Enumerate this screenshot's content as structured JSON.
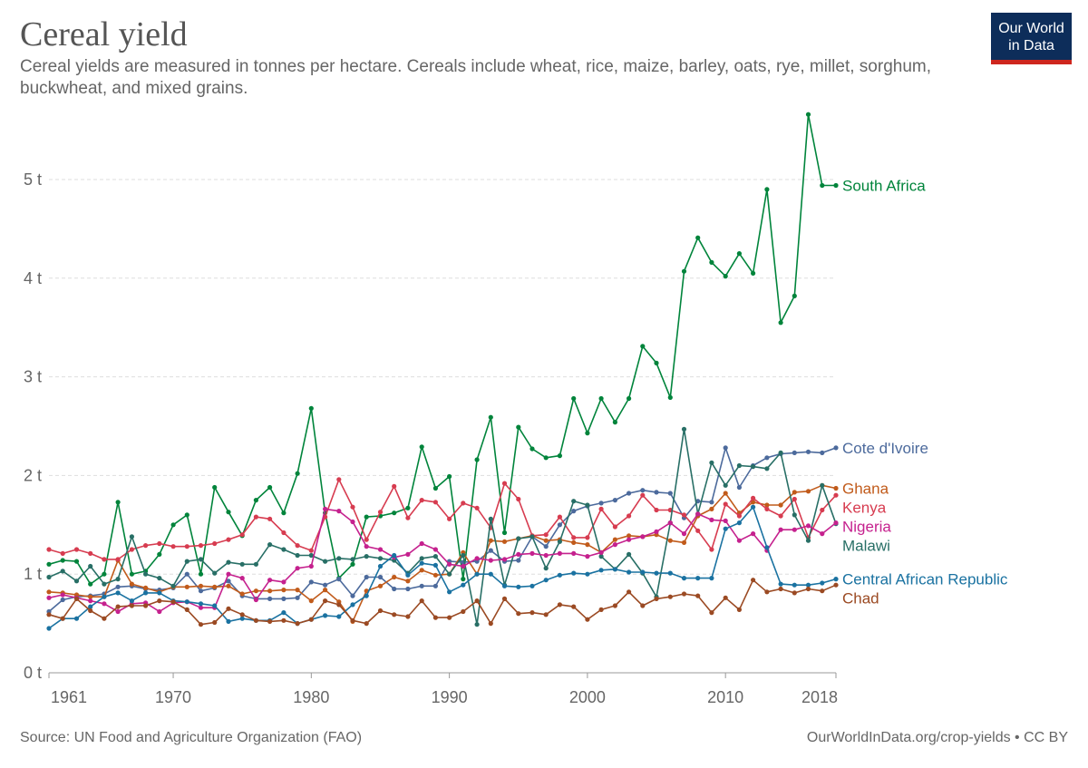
{
  "header": {
    "title": "Cereal yield",
    "subtitle": "Cereal yields are measured in tonnes per hectare. Cereals include wheat, rice, maize, barley, oats, rye, millet, sorghum, buckwheat, and mixed grains."
  },
  "logo": {
    "line1": "Our World",
    "line2": "in Data"
  },
  "footer": {
    "source": "Source: UN Food and Agriculture Organization (FAO)",
    "credit": "OurWorldInData.org/crop-yields • CC BY"
  },
  "chart_data": {
    "type": "line",
    "x": [
      1961,
      1962,
      1963,
      1964,
      1965,
      1966,
      1967,
      1968,
      1969,
      1970,
      1971,
      1972,
      1973,
      1974,
      1975,
      1976,
      1977,
      1978,
      1979,
      1980,
      1981,
      1982,
      1983,
      1984,
      1985,
      1986,
      1987,
      1988,
      1989,
      1990,
      1991,
      1992,
      1993,
      1994,
      1995,
      1996,
      1997,
      1998,
      1999,
      2000,
      2001,
      2002,
      2003,
      2004,
      2005,
      2006,
      2007,
      2008,
      2009,
      2010,
      2011,
      2012,
      2013,
      2014,
      2015,
      2016,
      2017,
      2018
    ],
    "xticks": [
      {
        "value": 1961,
        "label": "1961"
      },
      {
        "value": 1970,
        "label": "1970"
      },
      {
        "value": 1980,
        "label": "1980"
      },
      {
        "value": 1990,
        "label": "1990"
      },
      {
        "value": 2000,
        "label": "2000"
      },
      {
        "value": 2010,
        "label": "2010"
      },
      {
        "value": 2018,
        "label": "2018"
      }
    ],
    "yticks": [
      {
        "value": 0,
        "label": "0 t"
      },
      {
        "value": 1,
        "label": "1 t"
      },
      {
        "value": 2,
        "label": "2 t"
      },
      {
        "value": 3,
        "label": "3 t"
      },
      {
        "value": 4,
        "label": "4 t"
      },
      {
        "value": 5,
        "label": "5 t"
      }
    ],
    "xlim": [
      1961,
      2018
    ],
    "ylim": [
      0,
      5.7
    ],
    "grid": "horizontal-dashed",
    "legend": "labels at right end of lines",
    "series": [
      {
        "name": "South Africa",
        "color": "#00843b",
        "values": [
          1.1,
          1.14,
          1.13,
          0.9,
          1.0,
          1.73,
          1.0,
          1.03,
          1.2,
          1.5,
          1.6,
          1.0,
          1.88,
          1.63,
          1.39,
          1.75,
          1.88,
          1.62,
          2.02,
          2.68,
          1.62,
          0.96,
          1.1,
          1.58,
          1.59,
          1.62,
          1.67,
          2.29,
          1.87,
          1.99,
          0.95,
          2.16,
          2.59,
          1.42,
          2.49,
          2.27,
          2.18,
          2.2,
          2.78,
          2.43,
          2.78,
          2.54,
          2.78,
          3.31,
          3.14,
          2.79,
          4.07,
          4.41,
          4.16,
          4.02,
          4.25,
          4.05,
          4.9,
          3.55,
          3.82,
          5.66,
          4.94,
          4.94
        ]
      },
      {
        "name": "Cote d'Ivoire",
        "color": "#4c6a9c",
        "values": [
          0.62,
          0.74,
          0.77,
          0.78,
          0.8,
          0.87,
          0.88,
          0.85,
          0.84,
          0.86,
          1.0,
          0.83,
          0.86,
          0.93,
          0.78,
          0.75,
          0.75,
          0.75,
          0.76,
          0.92,
          0.89,
          0.95,
          0.78,
          0.97,
          0.97,
          0.85,
          0.85,
          0.88,
          0.88,
          1.13,
          1.12,
          1.13,
          1.24,
          1.13,
          1.14,
          1.38,
          1.28,
          1.5,
          1.64,
          1.69,
          1.72,
          1.75,
          1.82,
          1.85,
          1.83,
          1.82,
          1.57,
          1.74,
          1.73,
          2.28,
          1.88,
          2.1,
          2.18,
          2.22,
          2.23,
          2.24,
          2.23,
          2.28
        ]
      },
      {
        "name": "Ghana",
        "color": "#c15b1b",
        "values": [
          0.82,
          0.81,
          0.79,
          0.77,
          0.77,
          1.14,
          0.9,
          0.86,
          0.82,
          0.87,
          0.87,
          0.88,
          0.87,
          0.88,
          0.8,
          0.83,
          0.83,
          0.84,
          0.84,
          0.73,
          0.84,
          0.72,
          0.52,
          0.83,
          0.88,
          0.97,
          0.93,
          1.04,
          0.99,
          1.0,
          1.22,
          1.0,
          1.34,
          1.33,
          1.36,
          1.39,
          1.34,
          1.35,
          1.32,
          1.3,
          1.22,
          1.35,
          1.39,
          1.38,
          1.4,
          1.34,
          1.32,
          1.59,
          1.66,
          1.82,
          1.62,
          1.73,
          1.7,
          1.7,
          1.83,
          1.84,
          1.9,
          1.87
        ]
      },
      {
        "name": "Kenya",
        "color": "#d73c50",
        "values": [
          1.25,
          1.21,
          1.25,
          1.21,
          1.15,
          1.15,
          1.25,
          1.29,
          1.31,
          1.28,
          1.28,
          1.29,
          1.31,
          1.35,
          1.4,
          1.58,
          1.56,
          1.42,
          1.29,
          1.24,
          1.58,
          1.96,
          1.68,
          1.35,
          1.63,
          1.89,
          1.57,
          1.75,
          1.73,
          1.56,
          1.72,
          1.67,
          1.47,
          1.92,
          1.76,
          1.39,
          1.4,
          1.58,
          1.37,
          1.37,
          1.66,
          1.48,
          1.59,
          1.8,
          1.65,
          1.65,
          1.6,
          1.44,
          1.25,
          1.71,
          1.59,
          1.77,
          1.66,
          1.59,
          1.76,
          1.37,
          1.65,
          1.8
        ]
      },
      {
        "name": "Malawi",
        "color": "#286f66",
        "values": [
          0.97,
          1.03,
          0.93,
          1.08,
          0.9,
          0.95,
          1.38,
          1.0,
          0.96,
          0.88,
          1.13,
          1.15,
          1.01,
          1.12,
          1.1,
          1.1,
          1.3,
          1.25,
          1.19,
          1.19,
          1.13,
          1.16,
          1.15,
          1.18,
          1.16,
          1.14,
          1.01,
          1.16,
          1.18,
          1.0,
          1.19,
          0.49,
          1.56,
          0.89,
          1.36,
          1.38,
          1.06,
          1.33,
          1.74,
          1.7,
          1.18,
          1.05,
          1.2,
          1.01,
          0.77,
          1.52,
          2.47,
          1.61,
          2.13,
          1.9,
          2.1,
          2.09,
          2.07,
          2.23,
          1.6,
          1.34,
          1.9,
          1.51
        ]
      },
      {
        "name": "Nigeria",
        "color": "#c5218e",
        "values": [
          0.76,
          0.79,
          0.76,
          0.73,
          0.7,
          0.62,
          0.7,
          0.71,
          0.62,
          0.71,
          0.72,
          0.66,
          0.66,
          1.0,
          0.96,
          0.74,
          0.94,
          0.92,
          1.06,
          1.08,
          1.66,
          1.64,
          1.53,
          1.28,
          1.25,
          1.17,
          1.2,
          1.31,
          1.25,
          1.1,
          1.08,
          1.16,
          1.14,
          1.15,
          1.2,
          1.21,
          1.19,
          1.21,
          1.21,
          1.18,
          1.22,
          1.3,
          1.35,
          1.38,
          1.43,
          1.52,
          1.41,
          1.61,
          1.55,
          1.54,
          1.34,
          1.41,
          1.24,
          1.45,
          1.45,
          1.49,
          1.41,
          1.52
        ]
      },
      {
        "name": "Central African Republic",
        "color": "#1a72a1",
        "values": [
          0.45,
          0.55,
          0.55,
          0.67,
          0.77,
          0.81,
          0.73,
          0.81,
          0.81,
          0.73,
          0.72,
          0.7,
          0.68,
          0.52,
          0.55,
          0.53,
          0.53,
          0.61,
          0.5,
          0.54,
          0.58,
          0.57,
          0.69,
          0.78,
          1.08,
          1.19,
          0.99,
          1.11,
          1.09,
          0.82,
          0.89,
          1.0,
          1.0,
          0.88,
          0.87,
          0.88,
          0.94,
          0.99,
          1.01,
          1.0,
          1.04,
          1.05,
          1.02,
          1.02,
          1.01,
          1.01,
          0.96,
          0.96,
          0.96,
          1.46,
          1.52,
          1.68,
          1.27,
          0.9,
          0.89,
          0.89,
          0.91,
          0.95
        ]
      },
      {
        "name": "Chad",
        "color": "#9b4a23",
        "values": [
          0.59,
          0.55,
          0.75,
          0.63,
          0.55,
          0.67,
          0.68,
          0.68,
          0.73,
          0.72,
          0.64,
          0.49,
          0.51,
          0.65,
          0.59,
          0.53,
          0.52,
          0.53,
          0.5,
          0.54,
          0.73,
          0.69,
          0.53,
          0.5,
          0.63,
          0.59,
          0.57,
          0.73,
          0.56,
          0.56,
          0.62,
          0.73,
          0.5,
          0.75,
          0.6,
          0.61,
          0.59,
          0.69,
          0.67,
          0.54,
          0.64,
          0.68,
          0.82,
          0.68,
          0.75,
          0.77,
          0.8,
          0.78,
          0.61,
          0.76,
          0.64,
          0.94,
          0.82,
          0.85,
          0.81,
          0.85,
          0.83,
          0.89
        ]
      }
    ]
  }
}
